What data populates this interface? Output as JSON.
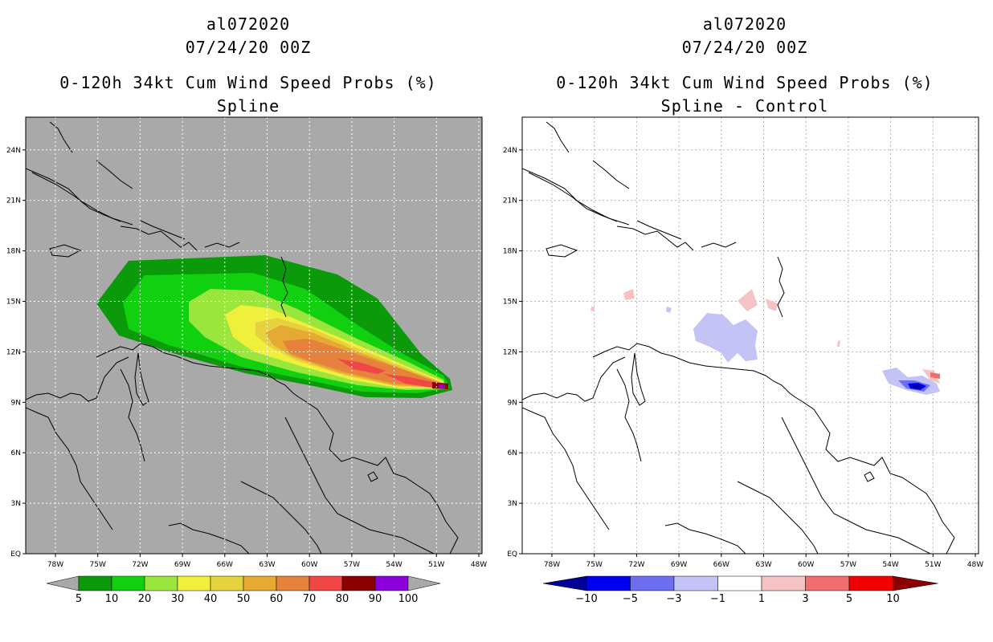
{
  "panels": [
    {
      "storm_id": "al072020",
      "datetime": "07/24/20 00Z",
      "product": "0-120h 34kt Cum Wind Speed Probs (%)",
      "subtitle": "Spline",
      "background": "#a9a9a9",
      "x_ticks": [
        "78W",
        "75W",
        "72W",
        "69W",
        "66W",
        "63W",
        "60W",
        "57W",
        "54W",
        "51W",
        "48W"
      ],
      "y_ticks": [
        "EQ",
        "3N",
        "6N",
        "9N",
        "12N",
        "15N",
        "18N",
        "21N",
        "24N"
      ],
      "colorbar": {
        "labels": [
          "5",
          "10",
          "20",
          "30",
          "40",
          "50",
          "60",
          "70",
          "80",
          "90",
          "100"
        ],
        "colors": [
          "#a9a9a9",
          "#0a9a0a",
          "#10d010",
          "#9ae63c",
          "#f0f03c",
          "#e6d23c",
          "#e6aa32",
          "#e6823c",
          "#f04646",
          "#8c0000",
          "#8c00dc",
          "#a9a9a9"
        ]
      }
    },
    {
      "storm_id": "al072020",
      "datetime": "07/24/20 00Z",
      "product": "0-120h 34kt Cum Wind Speed Probs (%)",
      "subtitle": "Spline - Control",
      "background": "#ffffff",
      "x_ticks": [
        "78W",
        "75W",
        "72W",
        "69W",
        "66W",
        "63W",
        "60W",
        "57W",
        "54W",
        "51W",
        "48W"
      ],
      "y_ticks": [
        "EQ",
        "3N",
        "6N",
        "9N",
        "12N",
        "15N",
        "18N",
        "21N",
        "24N"
      ],
      "colorbar": {
        "labels": [
          "−10",
          "−5",
          "−3",
          "−1",
          "1",
          "3",
          "5",
          "10"
        ],
        "colors": [
          "#000096",
          "#0000f0",
          "#6e6ef0",
          "#c3c3f5",
          "#ffffff",
          "#f5c3c3",
          "#f06e6e",
          "#f00000",
          "#8c0000"
        ]
      }
    }
  ]
}
